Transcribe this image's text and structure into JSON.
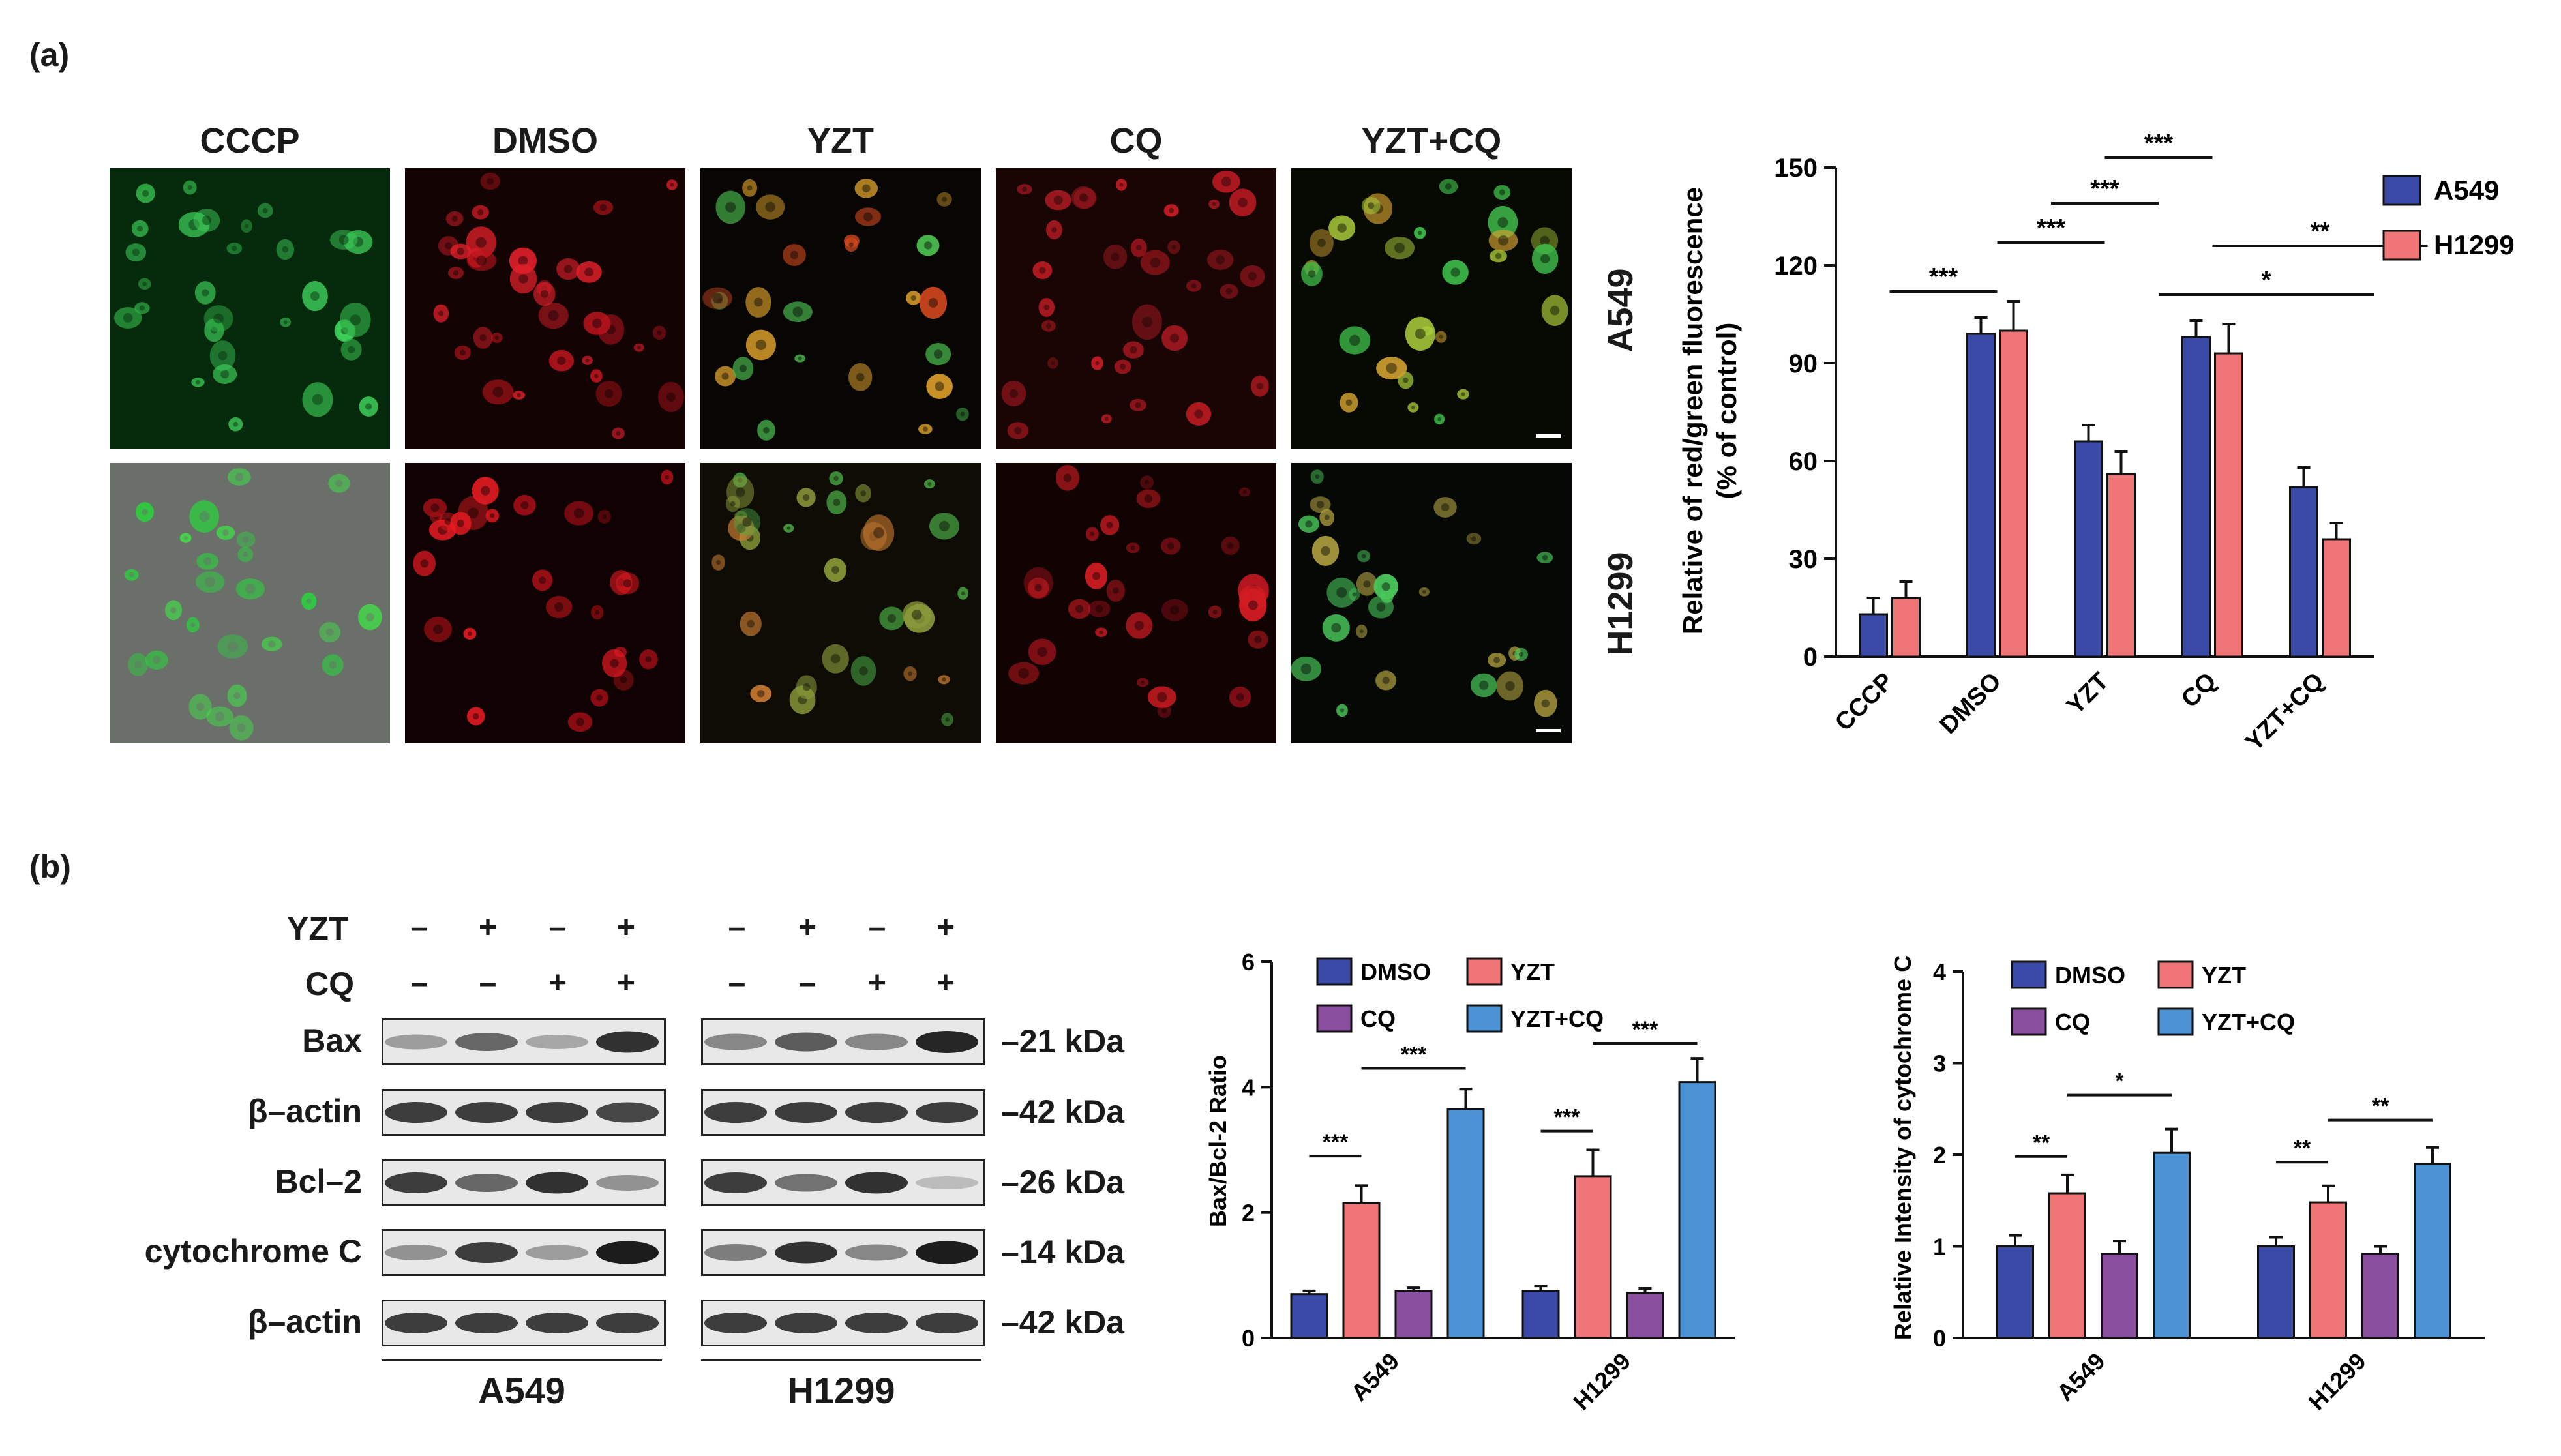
{
  "panel_a_label": "(a)",
  "panel_b_label": "(b)",
  "micro": {
    "columns": [
      "CCCP",
      "DMSO",
      "YZT",
      "CQ",
      "YZT+CQ"
    ],
    "rows": [
      "A549",
      "H1299"
    ]
  },
  "western": {
    "treatments": [
      {
        "name": "YZT",
        "signs": [
          "–",
          "+",
          "–",
          "+",
          "–",
          "+",
          "–",
          "+"
        ]
      },
      {
        "name": "CQ",
        "signs": [
          "–",
          "–",
          "+",
          "+",
          "–",
          "–",
          "+",
          "+"
        ]
      }
    ],
    "bands": [
      {
        "name": "Bax",
        "kda": "–21 kDa"
      },
      {
        "name": "β–actin",
        "kda": "–42 kDa"
      },
      {
        "name": "Bcl–2",
        "kda": "–26 kDa"
      },
      {
        "name": "cytochrome C",
        "kda": "–14 kDa"
      },
      {
        "name": "β–actin",
        "kda": "–42 kDa"
      }
    ],
    "cell_lines": [
      "A549",
      "H1299"
    ]
  },
  "colors": {
    "A549": "#3a4aa6",
    "H1299": "#ef7577",
    "DMSO": "#3a4aa6",
    "YZT": "#ef7577",
    "CQ": "#8a4f9e",
    "YZT+CQ": "#4b93d4"
  },
  "chart_data": [
    {
      "id": "fluorescence",
      "type": "bar",
      "ylabel": "Relative of red/green fluorescence",
      "ylabel2": "(% of control)",
      "categories": [
        "CCCP",
        "DMSO",
        "YZT",
        "CQ",
        "YZT+CQ"
      ],
      "ylim": [
        0,
        150
      ],
      "yticks": [
        0,
        30,
        60,
        90,
        120,
        150
      ],
      "legend": "top-right",
      "series": [
        {
          "name": "A549",
          "values": [
            13,
            99,
            66,
            98,
            52
          ],
          "errors": [
            5,
            5,
            5,
            5,
            6
          ]
        },
        {
          "name": "H1299",
          "values": [
            18,
            100,
            56,
            93,
            36
          ],
          "errors": [
            5,
            9,
            7,
            9,
            5
          ]
        }
      ],
      "annotations": [
        {
          "label": "***",
          "from": 0,
          "to": 1,
          "level": 112
        },
        {
          "label": "***",
          "from": 1,
          "to": 2,
          "level": 127
        },
        {
          "label": "***",
          "from": 1.5,
          "to": 2.5,
          "level": 139
        },
        {
          "label": "***",
          "from": 2,
          "to": 3,
          "level": 153
        },
        {
          "label": "*",
          "from": 2.5,
          "to": 4.5,
          "level": 111
        },
        {
          "label": "**",
          "from": 3,
          "to": 5,
          "level": 126
        }
      ]
    },
    {
      "id": "bax_bcl2",
      "type": "bar",
      "ylabel": "Bax/Bcl-2 Ratio",
      "categories": [
        "A549",
        "H1299"
      ],
      "ylim": [
        0,
        6
      ],
      "yticks": [
        0,
        2,
        4,
        6
      ],
      "legend": "top-left",
      "series": [
        {
          "name": "DMSO",
          "values": [
            0.7,
            0.75
          ],
          "errors": [
            0.05,
            0.08
          ]
        },
        {
          "name": "YZT",
          "values": [
            2.15,
            2.58
          ],
          "errors": [
            0.28,
            0.42
          ]
        },
        {
          "name": "CQ",
          "values": [
            0.75,
            0.72
          ],
          "errors": [
            0.05,
            0.07
          ]
        },
        {
          "name": "YZT+CQ",
          "values": [
            3.65,
            4.08
          ],
          "errors": [
            0.32,
            0.38
          ]
        }
      ],
      "annotations": [
        {
          "label": "***",
          "group": 0,
          "from": 0,
          "to": 1,
          "level": 2.9
        },
        {
          "label": "***",
          "group": 0,
          "from": 1,
          "to": 3,
          "level": 4.3
        },
        {
          "label": "***",
          "group": 1,
          "from": 0,
          "to": 1,
          "level": 3.3
        },
        {
          "label": "***",
          "group": 1,
          "from": 1,
          "to": 3,
          "level": 4.7
        }
      ]
    },
    {
      "id": "cytochrome",
      "type": "bar",
      "ylabel": "Relative Intensity of cytochrome C",
      "categories": [
        "A549",
        "H1299"
      ],
      "ylim": [
        0,
        4
      ],
      "yticks": [
        0,
        1,
        2,
        3,
        4
      ],
      "legend": "top-left",
      "series": [
        {
          "name": "DMSO",
          "values": [
            1.0,
            1.0
          ],
          "errors": [
            0.12,
            0.1
          ]
        },
        {
          "name": "YZT",
          "values": [
            1.58,
            1.48
          ],
          "errors": [
            0.2,
            0.18
          ]
        },
        {
          "name": "CQ",
          "values": [
            0.92,
            0.92
          ],
          "errors": [
            0.14,
            0.08
          ]
        },
        {
          "name": "YZT+CQ",
          "values": [
            2.02,
            1.9
          ],
          "errors": [
            0.26,
            0.18
          ]
        }
      ],
      "annotations": [
        {
          "label": "**",
          "group": 0,
          "from": 0,
          "to": 1,
          "level": 1.98
        },
        {
          "label": "*",
          "group": 0,
          "from": 1,
          "to": 3,
          "level": 2.65
        },
        {
          "label": "**",
          "group": 1,
          "from": 0,
          "to": 1,
          "level": 1.92
        },
        {
          "label": "**",
          "group": 1,
          "from": 1,
          "to": 3,
          "level": 2.38
        }
      ]
    }
  ]
}
